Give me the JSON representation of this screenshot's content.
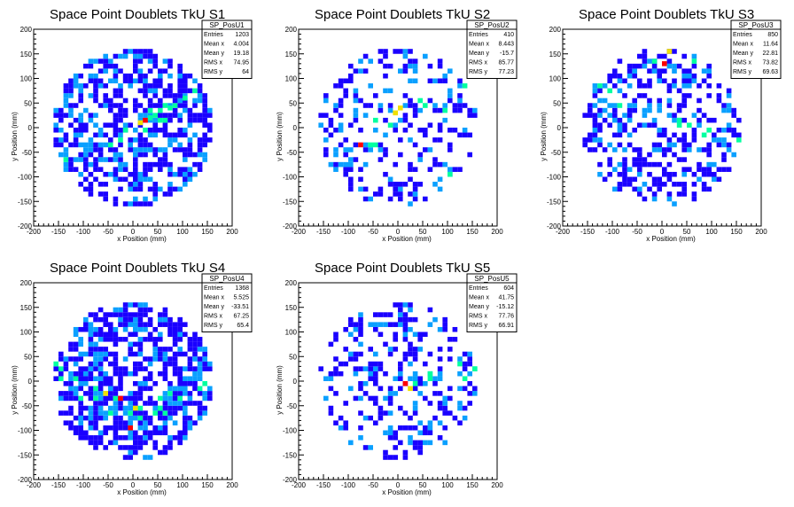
{
  "chart_data": [
    {
      "type": "heatmap",
      "title": "Space Point Doublets TkU S1",
      "xlabel": "x Position (mm)",
      "ylabel": "y Position (mm)",
      "xlim": [
        -200,
        200
      ],
      "ylim": [
        -200,
        200
      ],
      "xticks": [
        -200,
        -150,
        -100,
        -50,
        0,
        50,
        100,
        150,
        200
      ],
      "yticks": [
        -200,
        -150,
        -100,
        -50,
        0,
        50,
        100,
        150,
        200
      ],
      "grid": false,
      "legend": "top-right",
      "stats": {
        "name": "SP_PosU1",
        "rows": [
          {
            "label": "Entries",
            "value": "1203"
          },
          {
            "label": "Mean x",
            "value": "4.004"
          },
          {
            "label": "Mean y",
            "value": "19.18"
          },
          {
            "label": "RMS x",
            "value": "74.95"
          },
          {
            "label": "RMS y",
            "value": "64"
          }
        ]
      },
      "band": {
        "slope": 0.5,
        "offset": 0,
        "density": 0.75
      },
      "fill": 0.55,
      "hot_cells": [
        [
          20,
          10,
          4
        ],
        [
          10,
          5,
          3
        ],
        [
          -20,
          -10,
          2
        ],
        [
          30,
          15,
          2
        ],
        [
          40,
          20,
          2
        ],
        [
          70,
          35,
          2
        ],
        [
          100,
          55,
          2
        ]
      ]
    },
    {
      "type": "heatmap",
      "title": "Space Point Doublets TkU S2",
      "xlabel": "x Position (mm)",
      "ylabel": "y Position (mm)",
      "xlim": [
        -200,
        200
      ],
      "ylim": [
        -200,
        200
      ],
      "xticks": [
        -200,
        -150,
        -100,
        -50,
        0,
        50,
        100,
        150,
        200
      ],
      "yticks": [
        -200,
        -150,
        -100,
        -50,
        0,
        50,
        100,
        150,
        200
      ],
      "grid": false,
      "legend": "top-right",
      "stats": {
        "name": "SP_PosU2",
        "rows": [
          {
            "label": "Entries",
            "value": "410"
          },
          {
            "label": "Mean x",
            "value": "8.443"
          },
          {
            "label": "Mean y",
            "value": "-15.7"
          },
          {
            "label": "RMS x",
            "value": "85.77"
          },
          {
            "label": "RMS y",
            "value": "77.23"
          }
        ]
      },
      "band": {
        "slope": 0.55,
        "offset": 0,
        "density": 0.4
      },
      "fill": 0.28,
      "hot_cells": [
        [
          -80,
          -40,
          4
        ],
        [
          -10,
          25,
          3
        ],
        [
          0,
          35,
          3
        ],
        [
          40,
          50,
          2
        ],
        [
          -50,
          10,
          2
        ],
        [
          100,
          -100,
          2
        ]
      ]
    },
    {
      "type": "heatmap",
      "title": "Space Point Doublets TkU S3",
      "xlabel": "x Position (mm)",
      "ylabel": "y Position (mm)",
      "xlim": [
        -200,
        200
      ],
      "ylim": [
        -200,
        200
      ],
      "xticks": [
        -200,
        -150,
        -100,
        -50,
        0,
        50,
        100,
        150,
        200
      ],
      "yticks": [
        -200,
        -150,
        -100,
        -50,
        0,
        50,
        100,
        150,
        200
      ],
      "grid": false,
      "legend": "top-right",
      "stats": {
        "name": "SP_PosU3",
        "rows": [
          {
            "label": "Entries",
            "value": "850"
          },
          {
            "label": "Mean x",
            "value": "11.64"
          },
          {
            "label": "Mean y",
            "value": "22.81"
          },
          {
            "label": "RMS x",
            "value": "73.82"
          },
          {
            "label": "RMS y",
            "value": "69.63"
          }
        ]
      },
      "band": {
        "slope": -0.4,
        "offset": 20,
        "density": 0.45
      },
      "fill": 0.42,
      "hot_cells": [
        [
          0,
          125,
          4
        ],
        [
          10,
          150,
          3
        ],
        [
          -20,
          130,
          2
        ],
        [
          60,
          130,
          2
        ],
        [
          50,
          0,
          2
        ],
        [
          30,
          10,
          2
        ]
      ]
    },
    {
      "type": "heatmap",
      "title": "Space Point Doublets TkU S4",
      "xlabel": "x Position (mm)",
      "ylabel": "y Position (mm)",
      "xlim": [
        -200,
        200
      ],
      "ylim": [
        -200,
        200
      ],
      "xticks": [
        -200,
        -150,
        -100,
        -50,
        0,
        50,
        100,
        150,
        200
      ],
      "yticks": [
        -200,
        -150,
        -100,
        -50,
        0,
        50,
        100,
        150,
        200
      ],
      "grid": false,
      "legend": "top-right",
      "stats": {
        "name": "SP_PosU4",
        "rows": [
          {
            "label": "Entries",
            "value": "1368"
          },
          {
            "label": "Mean x",
            "value": "5.525"
          },
          {
            "label": "Mean y",
            "value": "-33.51"
          },
          {
            "label": "RMS x",
            "value": "67.25"
          },
          {
            "label": "RMS y",
            "value": "65.4"
          }
        ]
      },
      "band": {
        "arc": true,
        "density": 0.8
      },
      "fill": 0.6,
      "hot_cells": [
        [
          -30,
          -40,
          4
        ],
        [
          -10,
          -100,
          4
        ],
        [
          -60,
          -30,
          3
        ],
        [
          0,
          -60,
          3
        ],
        [
          50,
          -60,
          2
        ],
        [
          90,
          -40,
          2
        ],
        [
          -80,
          -20,
          2
        ]
      ]
    },
    {
      "type": "heatmap",
      "title": "Space Point Doublets TkU S5",
      "xlabel": "x Position (mm)",
      "ylabel": "y Position (mm)",
      "xlim": [
        -200,
        200
      ],
      "ylim": [
        -200,
        200
      ],
      "xticks": [
        -200,
        -150,
        -100,
        -50,
        0,
        50,
        100,
        150,
        200
      ],
      "yticks": [
        -200,
        -150,
        -100,
        -50,
        0,
        50,
        100,
        150,
        200
      ],
      "grid": false,
      "legend": "top-right",
      "stats": {
        "name": "SP_PosU5",
        "rows": [
          {
            "label": "Entries",
            "value": "604"
          },
          {
            "label": "Mean x",
            "value": "41.75"
          },
          {
            "label": "Mean y",
            "value": "-15.12"
          },
          {
            "label": "RMS x",
            "value": "77.76"
          },
          {
            "label": "RMS y",
            "value": "66.91"
          }
        ]
      },
      "band": {
        "slope": 0.3,
        "offset": -10,
        "density": 0.45,
        "xmin": 0
      },
      "fill": 0.32,
      "hot_cells": [
        [
          10,
          -10,
          4
        ],
        [
          20,
          -20,
          3
        ],
        [
          60,
          10,
          2
        ],
        [
          130,
          0,
          2
        ],
        [
          150,
          20,
          2
        ]
      ]
    }
  ],
  "palette": [
    "#1a00ff",
    "#0aa0ff",
    "#00ffa0",
    "#f0e000",
    "#ff0000"
  ]
}
